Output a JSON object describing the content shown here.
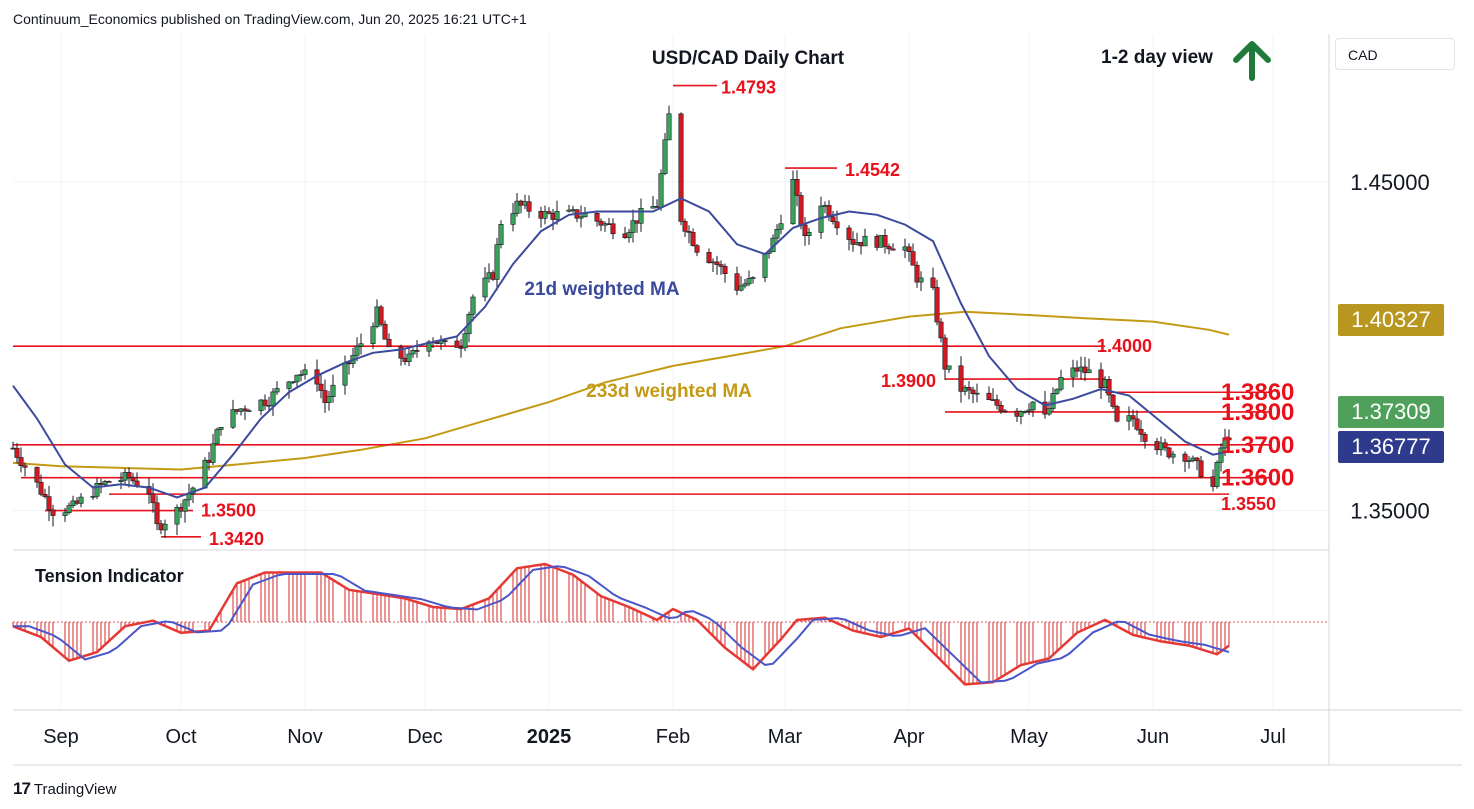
{
  "header": {
    "published": "Continuum_Economics published on TradingView.com, Jun 20, 2025 16:21 UTC+1"
  },
  "footer": {
    "brand": "TradingView",
    "logo_glyph": "17"
  },
  "symbol_box": {
    "label": "CAD"
  },
  "price_tags": [
    {
      "label": "1.40327",
      "color": "#b8961f"
    },
    {
      "label": "1.37309",
      "color": "#4fa05a"
    },
    {
      "label": "1.36777",
      "color": "#2e3a8c"
    }
  ],
  "colors": {
    "resistance": "#e8101a",
    "ma21": "#3b4a9c",
    "ma233": "#c49a14",
    "bull": "#3aa35a",
    "bear": "#d01a20",
    "arrow": "#1f7a3a",
    "tension_fill": "#d42a2a"
  },
  "chart_data": {
    "type": "candlestick",
    "title": "USD/CAD Daily Chart",
    "view": "1-2 day view",
    "view_direction": "up",
    "x_ticks": [
      "Sep",
      "Oct",
      "Nov",
      "Dec",
      "2025",
      "Feb",
      "Mar",
      "Apr",
      "May",
      "Jun",
      "Jul"
    ],
    "x_range": [
      "2024-08-20",
      "2025-07-15"
    ],
    "y_ticks": [
      "1.45000",
      "1.35000"
    ],
    "y_range": [
      1.338,
      1.495
    ],
    "grid": true,
    "levels": [
      {
        "label": "1.4793",
        "value": 1.4793
      },
      {
        "label": "1.4542",
        "value": 1.4542
      },
      {
        "label": "1.4000",
        "value": 1.4
      },
      {
        "label": "1.3900",
        "value": 1.39
      },
      {
        "label": "1.3860",
        "value": 1.386
      },
      {
        "label": "1.3800",
        "value": 1.38
      },
      {
        "label": "1.3700",
        "value": 1.37
      },
      {
        "label": "1.3600",
        "value": 1.36
      },
      {
        "label": "1.3550",
        "value": 1.355
      },
      {
        "label": "1.3500",
        "value": 1.35
      },
      {
        "label": "1.3420",
        "value": 1.342
      }
    ],
    "annotations": [
      {
        "label": "21d weighted MA"
      },
      {
        "label": "233d weighted MA"
      }
    ],
    "ma21_series": [
      [
        "2024-08-20",
        1.388
      ],
      [
        "2024-08-26",
        1.378
      ],
      [
        "2024-09-02",
        1.364
      ],
      [
        "2024-09-09",
        1.357
      ],
      [
        "2024-09-16",
        1.358
      ],
      [
        "2024-09-23",
        1.357
      ],
      [
        "2024-09-30",
        1.354
      ],
      [
        "2024-10-07",
        1.357
      ],
      [
        "2024-10-14",
        1.367
      ],
      [
        "2024-10-21",
        1.378
      ],
      [
        "2024-10-28",
        1.386
      ],
      [
        "2024-11-04",
        1.391
      ],
      [
        "2024-11-11",
        1.395
      ],
      [
        "2024-11-18",
        1.398
      ],
      [
        "2024-11-25",
        1.399
      ],
      [
        "2024-12-02",
        1.401
      ],
      [
        "2024-12-09",
        1.403
      ],
      [
        "2024-12-16",
        1.412
      ],
      [
        "2024-12-23",
        1.425
      ],
      [
        "2024-12-30",
        1.435
      ],
      [
        "2025-01-06",
        1.44
      ],
      [
        "2025-01-13",
        1.441
      ],
      [
        "2025-01-20",
        1.441
      ],
      [
        "2025-01-27",
        1.441
      ],
      [
        "2025-02-03",
        1.445
      ],
      [
        "2025-02-10",
        1.441
      ],
      [
        "2025-02-17",
        1.431
      ],
      [
        "2025-02-24",
        1.428
      ],
      [
        "2025-03-03",
        1.436
      ],
      [
        "2025-03-10",
        1.439
      ],
      [
        "2025-03-17",
        1.441
      ],
      [
        "2025-03-24",
        1.44
      ],
      [
        "2025-03-31",
        1.437
      ],
      [
        "2025-04-07",
        1.432
      ],
      [
        "2025-04-14",
        1.413
      ],
      [
        "2025-04-21",
        1.397
      ],
      [
        "2025-04-28",
        1.387
      ],
      [
        "2025-05-05",
        1.382
      ],
      [
        "2025-05-12",
        1.384
      ],
      [
        "2025-05-19",
        1.387
      ],
      [
        "2025-05-26",
        1.385
      ],
      [
        "2025-06-02",
        1.378
      ],
      [
        "2025-06-09",
        1.371
      ],
      [
        "2025-06-16",
        1.367
      ],
      [
        "2025-06-20",
        1.368
      ]
    ],
    "ma233_series": [
      [
        "2024-08-20",
        1.3645
      ],
      [
        "2024-09-01",
        1.3635
      ],
      [
        "2024-09-15",
        1.363
      ],
      [
        "2024-10-01",
        1.3625
      ],
      [
        "2024-10-15",
        1.364
      ],
      [
        "2024-11-01",
        1.366
      ],
      [
        "2024-11-15",
        1.3685
      ],
      [
        "2024-12-01",
        1.372
      ],
      [
        "2024-12-15",
        1.377
      ],
      [
        "2025-01-01",
        1.383
      ],
      [
        "2025-01-15",
        1.389
      ],
      [
        "2025-02-01",
        1.394
      ],
      [
        "2025-02-15",
        1.397
      ],
      [
        "2025-03-01",
        1.4
      ],
      [
        "2025-03-15",
        1.4055
      ],
      [
        "2025-04-01",
        1.409
      ],
      [
        "2025-04-15",
        1.4105
      ],
      [
        "2025-05-01",
        1.4095
      ],
      [
        "2025-05-15",
        1.4085
      ],
      [
        "2025-06-01",
        1.4075
      ],
      [
        "2025-06-15",
        1.405
      ],
      [
        "2025-06-20",
        1.4035
      ]
    ],
    "price_path": [
      [
        "2024-08-20",
        1.369
      ],
      [
        "2024-08-26",
        1.358
      ],
      [
        "2024-08-30",
        1.35
      ],
      [
        "2024-09-04",
        1.351
      ],
      [
        "2024-09-09",
        1.356
      ],
      [
        "2024-09-13",
        1.359
      ],
      [
        "2024-09-18",
        1.36
      ],
      [
        "2024-09-23",
        1.356
      ],
      [
        "2024-09-25",
        1.345
      ],
      [
        "2024-09-30",
        1.35
      ],
      [
        "2024-10-04",
        1.357
      ],
      [
        "2024-10-08",
        1.366
      ],
      [
        "2024-10-11",
        1.377
      ],
      [
        "2024-10-16",
        1.381
      ],
      [
        "2024-10-23",
        1.384
      ],
      [
        "2024-10-30",
        1.392
      ],
      [
        "2024-11-04",
        1.39
      ],
      [
        "2024-11-06",
        1.383
      ],
      [
        "2024-11-11",
        1.393
      ],
      [
        "2024-11-15",
        1.401
      ],
      [
        "2024-11-19",
        1.41
      ],
      [
        "2024-11-22",
        1.398
      ],
      [
        "2024-11-27",
        1.396
      ],
      [
        "2024-12-02",
        1.403
      ],
      [
        "2024-12-06",
        1.4
      ],
      [
        "2024-12-10",
        1.401
      ],
      [
        "2024-12-13",
        1.415
      ],
      [
        "2024-12-18",
        1.422
      ],
      [
        "2024-12-20",
        1.438
      ],
      [
        "2024-12-24",
        1.443
      ],
      [
        "2024-12-31",
        1.44
      ],
      [
        "2025-01-06",
        1.44
      ],
      [
        "2025-01-10",
        1.44
      ],
      [
        "2025-01-15",
        1.437
      ],
      [
        "2025-01-20",
        1.435
      ],
      [
        "2025-01-24",
        1.44
      ],
      [
        "2025-01-28",
        1.443
      ],
      [
        "2025-01-31",
        1.47
      ],
      [
        "2025-02-03",
        1.439
      ],
      [
        "2025-02-07",
        1.43
      ],
      [
        "2025-02-12",
        1.425
      ],
      [
        "2025-02-17",
        1.418
      ],
      [
        "2025-02-21",
        1.42
      ],
      [
        "2025-02-26",
        1.432
      ],
      [
        "2025-03-03",
        1.45
      ],
      [
        "2025-03-06",
        1.432
      ],
      [
        "2025-03-10",
        1.444
      ],
      [
        "2025-03-14",
        1.438
      ],
      [
        "2025-03-18",
        1.432
      ],
      [
        "2025-03-24",
        1.432
      ],
      [
        "2025-03-31",
        1.43
      ],
      [
        "2025-04-03",
        1.421
      ],
      [
        "2025-04-07",
        1.416
      ],
      [
        "2025-04-10",
        1.394
      ],
      [
        "2025-04-14",
        1.387
      ],
      [
        "2025-04-21",
        1.383
      ],
      [
        "2025-04-28",
        1.38
      ],
      [
        "2025-05-02",
        1.383
      ],
      [
        "2025-05-05",
        1.378
      ],
      [
        "2025-05-09",
        1.39
      ],
      [
        "2025-05-13",
        1.393
      ],
      [
        "2025-05-16",
        1.392
      ],
      [
        "2025-05-20",
        1.388
      ],
      [
        "2025-05-23",
        1.376
      ],
      [
        "2025-05-27",
        1.378
      ],
      [
        "2025-05-30",
        1.373
      ],
      [
        "2025-06-04",
        1.368
      ],
      [
        "2025-06-09",
        1.367
      ],
      [
        "2025-06-13",
        1.362
      ],
      [
        "2025-06-16",
        1.357
      ],
      [
        "2025-06-18",
        1.369
      ],
      [
        "2025-06-20",
        1.3731
      ]
    ],
    "tension_indicator": {
      "label": "Tension Indicator",
      "series": [
        [
          "2024-08-20",
          -0.1
        ],
        [
          "2024-08-27",
          -0.35
        ],
        [
          "2024-09-03",
          -0.9
        ],
        [
          "2024-09-10",
          -0.7
        ],
        [
          "2024-09-17",
          -0.1
        ],
        [
          "2024-09-24",
          0.03
        ],
        [
          "2024-10-01",
          -0.25
        ],
        [
          "2024-10-08",
          -0.2
        ],
        [
          "2024-10-15",
          0.9
        ],
        [
          "2024-10-22",
          1.15
        ],
        [
          "2024-10-29",
          1.15
        ],
        [
          "2024-11-05",
          1.15
        ],
        [
          "2024-11-12",
          0.75
        ],
        [
          "2024-11-19",
          0.65
        ],
        [
          "2024-11-26",
          0.55
        ],
        [
          "2024-12-03",
          0.35
        ],
        [
          "2024-12-10",
          0.3
        ],
        [
          "2024-12-17",
          0.55
        ],
        [
          "2024-12-24",
          1.25
        ],
        [
          "2024-12-31",
          1.35
        ],
        [
          "2025-01-07",
          1.1
        ],
        [
          "2025-01-14",
          0.6
        ],
        [
          "2025-01-21",
          0.35
        ],
        [
          "2025-01-28",
          0.05
        ],
        [
          "2025-02-01",
          0.3
        ],
        [
          "2025-02-07",
          0.05
        ],
        [
          "2025-02-14",
          -0.6
        ],
        [
          "2025-02-21",
          -1.1
        ],
        [
          "2025-02-28",
          -0.4
        ],
        [
          "2025-03-04",
          0.05
        ],
        [
          "2025-03-11",
          0.1
        ],
        [
          "2025-03-18",
          -0.2
        ],
        [
          "2025-03-25",
          -0.35
        ],
        [
          "2025-04-01",
          -0.15
        ],
        [
          "2025-04-08",
          -0.8
        ],
        [
          "2025-04-15",
          -1.45
        ],
        [
          "2025-04-22",
          -1.4
        ],
        [
          "2025-04-29",
          -1.0
        ],
        [
          "2025-05-06",
          -0.85
        ],
        [
          "2025-05-13",
          -0.25
        ],
        [
          "2025-05-20",
          0.05
        ],
        [
          "2025-05-27",
          -0.3
        ],
        [
          "2025-06-03",
          -0.45
        ],
        [
          "2025-06-10",
          -0.55
        ],
        [
          "2025-06-17",
          -0.75
        ],
        [
          "2025-06-20",
          -0.55
        ]
      ]
    }
  }
}
